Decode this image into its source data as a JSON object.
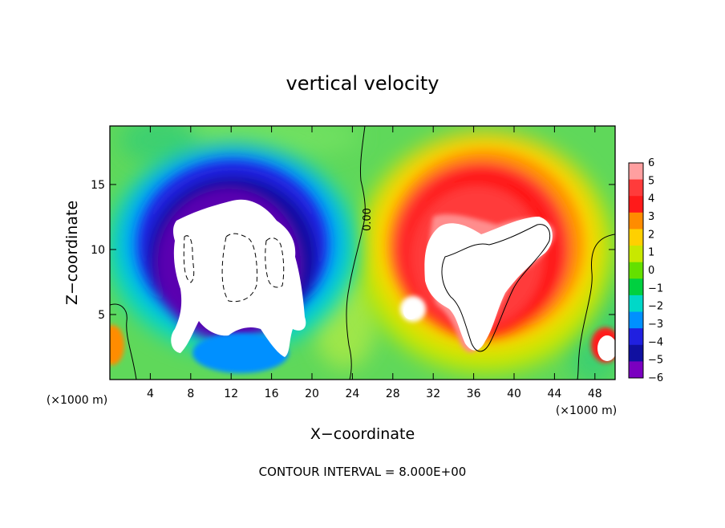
{
  "chart_data": {
    "type": "heatmap",
    "title": "vertical velocity",
    "xlabel": "X−coordinate",
    "ylabel": "Z−coordinate",
    "x_unit": "(×1000 m)",
    "z_unit": "(×1000 m)",
    "xlim": [
      0,
      50
    ],
    "ylim": [
      0,
      19.5
    ],
    "x_ticks": [
      "4",
      "8",
      "12",
      "16",
      "20",
      "24",
      "28",
      "32",
      "36",
      "40",
      "44",
      "48"
    ],
    "x_tick_values": [
      4,
      8,
      12,
      16,
      20,
      24,
      28,
      32,
      36,
      40,
      44,
      48
    ],
    "y_ticks": [
      "5",
      "10",
      "15"
    ],
    "y_tick_values": [
      5,
      10,
      15
    ],
    "colorbar": {
      "labels": [
        "6",
        "5",
        "4",
        "3",
        "2",
        "1",
        "0",
        "−1",
        "−2",
        "−3",
        "−4",
        "−5",
        "−6"
      ],
      "values": [
        6,
        5,
        4,
        3,
        2,
        1,
        0,
        -1,
        -2,
        -3,
        -4,
        -5,
        -6
      ],
      "colors": [
        "#ff9fa0",
        "#ff3b3b",
        "#ff1a1a",
        "#ff8c00",
        "#ffd000",
        "#c8e800",
        "#64e000",
        "#00d040",
        "#00d8c8",
        "#0090ff",
        "#2020e0",
        "#1010a0",
        "#7a00c0"
      ]
    },
    "contour_label": "0.00",
    "note": "CONTOUR INTERVAL = 8.000E+00"
  }
}
